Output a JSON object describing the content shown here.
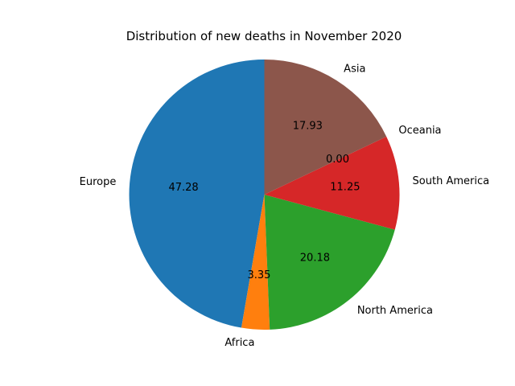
{
  "chart_data": {
    "type": "pie",
    "title": "Distribution of new deaths in November 2020",
    "start_angle_deg": 90,
    "direction": "counterclockwise",
    "slices": [
      {
        "label": "Europe",
        "value": 47.28,
        "pct_label": "47.28",
        "color": "#1f77b4"
      },
      {
        "label": "Africa",
        "value": 3.35,
        "pct_label": "3.35",
        "color": "#ff7f0e"
      },
      {
        "label": "North America",
        "value": 20.18,
        "pct_label": "20.18",
        "color": "#2ca02c"
      },
      {
        "label": "South America",
        "value": 11.25,
        "pct_label": "11.25",
        "color": "#d62728"
      },
      {
        "label": "Oceania",
        "value": 0.0,
        "pct_label": "0.00",
        "color": "#9467bd"
      },
      {
        "label": "Asia",
        "value": 17.93,
        "pct_label": "17.93",
        "color": "#8c564b"
      }
    ]
  }
}
